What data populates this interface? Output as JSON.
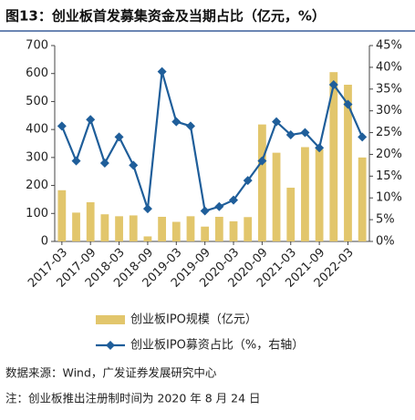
{
  "chart_data": {
    "type": "bar_line",
    "title": "图13：创业板首发募集资金及当期占比（亿元，%）",
    "categories": [
      "2017-03",
      null,
      "2017-09",
      null,
      "2018-03",
      null,
      "2018-09",
      null,
      "2019-03",
      null,
      "2019-09",
      null,
      "2020-03",
      null,
      "2020-09",
      null,
      "2021-03",
      null,
      "2021-09",
      null,
      "2022-03",
      null
    ],
    "series": [
      {
        "name": "创业板IPO规模（亿元）",
        "type": "bar",
        "color": "#e2c66c",
        "values": [
          183,
          103,
          140,
          97,
          90,
          93,
          18,
          88,
          70,
          90,
          53,
          88,
          72,
          87,
          418,
          317,
          192,
          337,
          330,
          605,
          560,
          300
        ]
      },
      {
        "name": "创业板IPO募资占比（%，右轴）",
        "type": "line",
        "axis": "y2",
        "color": "#1f5e9a",
        "values": [
          26.5,
          18.5,
          28,
          18,
          24,
          17.5,
          7.5,
          39,
          27.5,
          26.5,
          7,
          8,
          9.5,
          14,
          18.5,
          27.5,
          24.5,
          25,
          21.5,
          36,
          31.5,
          24
        ]
      }
    ],
    "ylim": [
      0,
      700
    ],
    "yticks": [
      0,
      100,
      200,
      300,
      400,
      500,
      600,
      700
    ],
    "y2lim": [
      0,
      45
    ],
    "y2ticks": [
      {
        "value": 0,
        "label": "0%"
      },
      {
        "value": 5,
        "label": "5%"
      },
      {
        "value": 10,
        "label": "10%"
      },
      {
        "value": 15,
        "label": "15%"
      },
      {
        "value": 20,
        "label": "20%"
      },
      {
        "value": 25,
        "label": "25%"
      },
      {
        "value": 30,
        "label": "30%"
      },
      {
        "value": 35,
        "label": "35%"
      },
      {
        "value": 40,
        "label": "40%"
      },
      {
        "value": 45,
        "label": "45%"
      }
    ],
    "source": "数据来源：Wind，广发证券发展研究中心",
    "note": "注：创业板推出注册制时间为 2020 年 8 月 24 日"
  }
}
